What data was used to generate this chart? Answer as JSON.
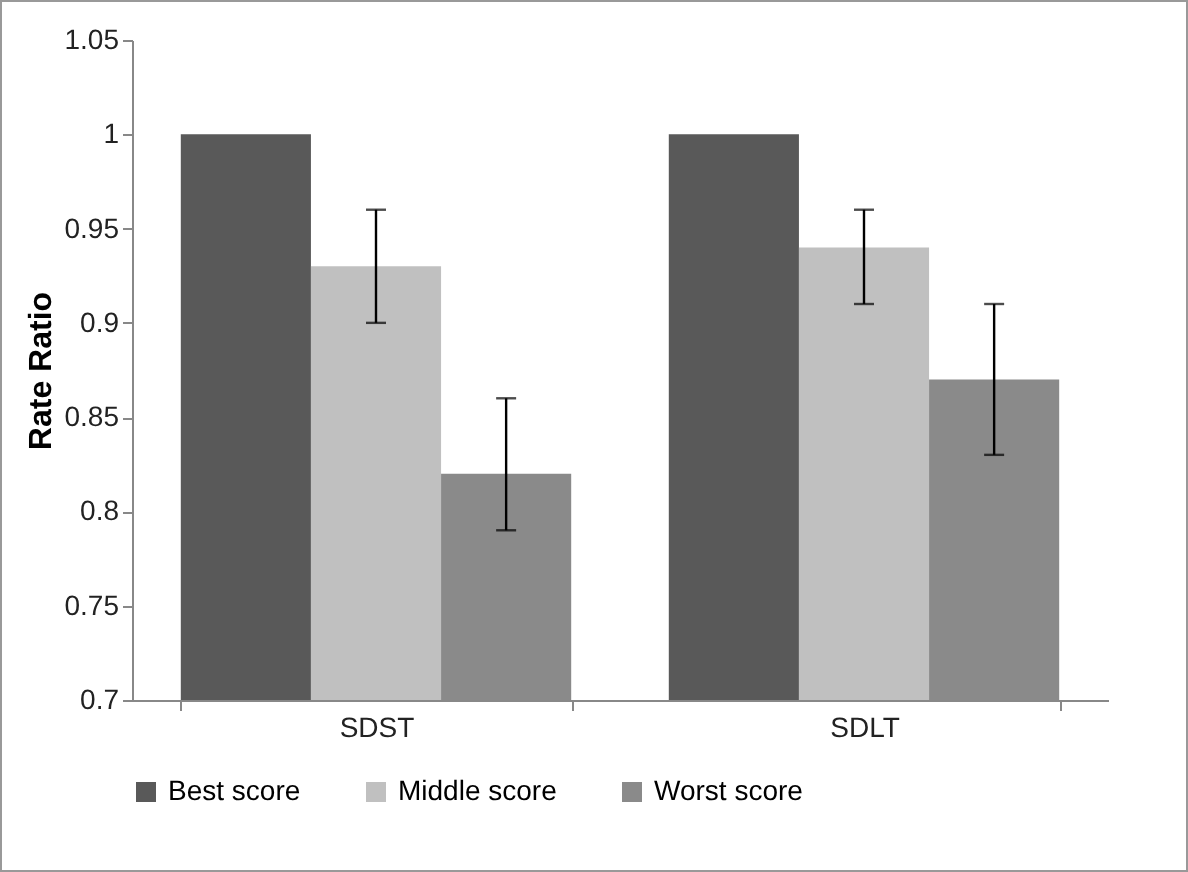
{
  "chart_data": {
    "type": "bar",
    "ylabel": "Rate Ratio",
    "categories": [
      "SDST",
      "SDLT"
    ],
    "series": [
      {
        "name": "Best score",
        "color": "#595959",
        "values": [
          1,
          1
        ]
      },
      {
        "name": "Middle score",
        "color": "#c0c0c0",
        "values": [
          0.93,
          0.94
        ],
        "errors": [
          [
            0.9,
            0.96
          ],
          [
            0.91,
            0.96
          ]
        ]
      },
      {
        "name": "Worst score",
        "color": "#8a8a8a",
        "values": [
          0.82,
          0.87
        ],
        "errors": [
          [
            0.79,
            0.86
          ],
          [
            0.83,
            0.91
          ]
        ]
      }
    ],
    "ylim": [
      0.7,
      1.05
    ],
    "yticks": [
      0.7,
      0.75,
      0.8,
      0.85,
      0.9,
      0.95,
      1,
      1.05
    ],
    "grid": false,
    "legend": "bottom"
  }
}
